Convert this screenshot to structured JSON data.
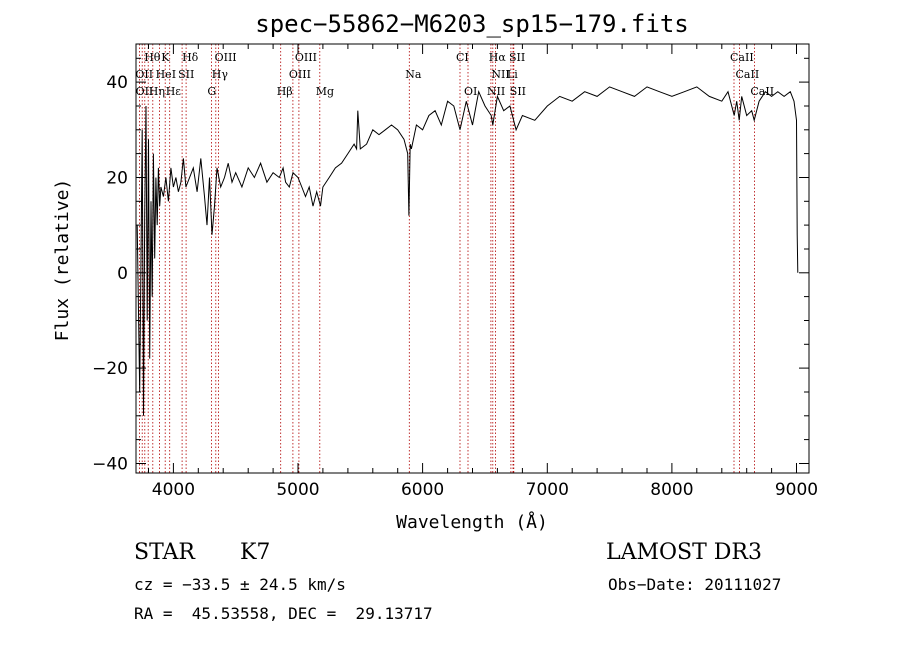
{
  "chart_data": {
    "type": "line",
    "title": "spec−55862−M6203_sp15−179.fits",
    "xlabel": "Wavelength (Å)",
    "ylabel": "Flux (relative)",
    "xlim": [
      3700,
      9100
    ],
    "ylim": [
      -42,
      48
    ],
    "xticks": [
      4000,
      5000,
      6000,
      7000,
      8000,
      9000
    ],
    "xtick_labels": [
      "4000",
      "5000",
      "6000",
      "7000",
      "8000",
      "9000"
    ],
    "yticks": [
      -40,
      -20,
      0,
      20,
      40
    ],
    "ytick_labels": [
      "−40",
      "−20",
      "0",
      "20",
      "40"
    ],
    "series": [
      {
        "name": "flux",
        "x": [
          3710,
          3730,
          3750,
          3760,
          3770,
          3780,
          3790,
          3800,
          3810,
          3820,
          3830,
          3840,
          3850,
          3860,
          3870,
          3880,
          3890,
          3900,
          3920,
          3940,
          3960,
          3980,
          4000,
          4020,
          4040,
          4060,
          4080,
          4100,
          4130,
          4160,
          4190,
          4220,
          4250,
          4270,
          4290,
          4310,
          4330,
          4350,
          4380,
          4410,
          4440,
          4470,
          4500,
          4550,
          4600,
          4650,
          4700,
          4750,
          4800,
          4850,
          4880,
          4900,
          4930,
          4960,
          5000,
          5030,
          5060,
          5090,
          5120,
          5150,
          5180,
          5200,
          5250,
          5300,
          5350,
          5400,
          5450,
          5470,
          5480,
          5500,
          5550,
          5600,
          5650,
          5700,
          5750,
          5800,
          5850,
          5880,
          5890,
          5895,
          5900,
          5910,
          5950,
          6000,
          6050,
          6100,
          6150,
          6200,
          6250,
          6300,
          6350,
          6400,
          6450,
          6500,
          6550,
          6563,
          6600,
          6650,
          6700,
          6750,
          6800,
          6900,
          7000,
          7100,
          7200,
          7300,
          7400,
          7500,
          7600,
          7700,
          7800,
          7900,
          8000,
          8100,
          8200,
          8300,
          8400,
          8450,
          8500,
          8520,
          8540,
          8560,
          8600,
          8640,
          8660,
          8700,
          8750,
          8800,
          8850,
          8900,
          8950,
          8980,
          9000,
          9005,
          9010
        ],
        "values": [
          10,
          -25,
          30,
          -30,
          12,
          35,
          -10,
          28,
          -18,
          15,
          -5,
          25,
          3,
          20,
          10,
          22,
          14,
          18,
          16,
          20,
          15,
          22,
          18,
          20,
          17,
          19,
          24,
          18,
          20,
          22,
          17,
          24,
          16,
          10,
          20,
          8,
          14,
          22,
          18,
          20,
          23,
          19,
          21,
          18,
          22,
          20,
          23,
          19,
          21,
          20,
          22,
          19,
          18,
          21,
          20,
          18,
          16,
          18,
          14,
          17,
          14,
          18,
          20,
          22,
          23,
          25,
          27,
          26,
          34,
          26,
          27,
          30,
          29,
          30,
          31,
          30,
          28,
          25,
          12,
          20,
          27,
          26,
          31,
          30,
          33,
          34,
          31,
          36,
          35,
          30,
          36,
          31,
          38,
          35,
          33,
          31,
          37,
          34,
          35,
          30,
          33,
          32,
          35,
          37,
          36,
          38,
          37,
          39,
          38,
          37,
          39,
          38,
          37,
          38,
          39,
          37,
          36,
          38,
          33,
          36,
          32,
          37,
          33,
          34,
          32,
          36,
          38,
          37,
          38,
          37,
          38,
          36,
          32,
          8,
          0
        ]
      }
    ],
    "line_labels": [
      {
        "text": "Hθ",
        "lambda": 3798,
        "row": 1
      },
      {
        "text": "K",
        "lambda": 3934,
        "row": 1
      },
      {
        "text": "Hδ",
        "lambda": 4102,
        "row": 1
      },
      {
        "text": "OIII",
        "lambda": 4363,
        "row": 1
      },
      {
        "text": "OIII",
        "lambda": 5007,
        "row": 1
      },
      {
        "text": "CI",
        "lambda": 6300,
        "row": 1
      },
      {
        "text": "Hα",
        "lambda": 6563,
        "row": 1
      },
      {
        "text": "SII",
        "lambda": 6725,
        "row": 1
      },
      {
        "text": "CaII",
        "lambda": 8498,
        "row": 1
      },
      {
        "text": "OII",
        "lambda": 3727,
        "row": 2
      },
      {
        "text": "HeI",
        "lambda": 3889,
        "row": 2
      },
      {
        "text": "SII",
        "lambda": 4070,
        "row": 2
      },
      {
        "text": "Hγ",
        "lambda": 4340,
        "row": 2
      },
      {
        "text": "OIII",
        "lambda": 4959,
        "row": 2
      },
      {
        "text": "Na",
        "lambda": 5893,
        "row": 2
      },
      {
        "text": "NII",
        "lambda": 6584,
        "row": 2
      },
      {
        "text": "Li",
        "lambda": 6708,
        "row": 2
      },
      {
        "text": "CaII",
        "lambda": 8542,
        "row": 2
      },
      {
        "text": "OII",
        "lambda": 3729,
        "row": 3
      },
      {
        "text": "Hε",
        "lambda": 3970,
        "row": 3
      },
      {
        "text": "Hη",
        "lambda": 3835,
        "row": 3
      },
      {
        "text": "G",
        "lambda": 4305,
        "row": 3
      },
      {
        "text": "Hβ",
        "lambda": 4861,
        "row": 3
      },
      {
        "text": "Mg",
        "lambda": 5175,
        "row": 3
      },
      {
        "text": "OI",
        "lambda": 6364,
        "row": 3
      },
      {
        "text": "NII",
        "lambda": 6548,
        "row": 3
      },
      {
        "text": "SII",
        "lambda": 6731,
        "row": 3
      },
      {
        "text": "CaII",
        "lambda": 8662,
        "row": 3
      }
    ],
    "marker_lines": [
      3727,
      3750,
      3771,
      3798,
      3835,
      3889,
      3934,
      3970,
      4070,
      4102,
      4305,
      4340,
      4363,
      4861,
      4959,
      5007,
      5175,
      5893,
      6300,
      6364,
      6548,
      6563,
      6584,
      6708,
      6725,
      6731,
      8498,
      8542,
      8662
    ]
  },
  "info": {
    "class": "STAR",
    "subclass": "K7",
    "survey": "LAMOST DR3",
    "cz": "cz = −33.5 ± 24.5 km/s",
    "obs_date": "Obs−Date: 20111027",
    "radec": "RA =  45.53558, DEC =  29.13717"
  }
}
